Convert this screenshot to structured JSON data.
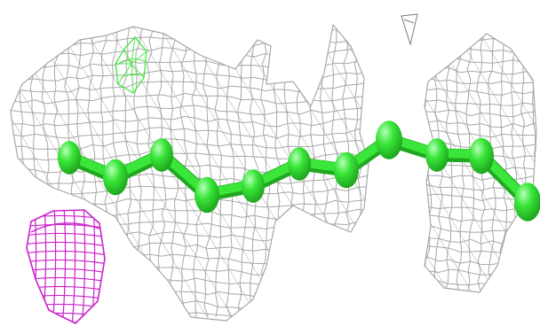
{
  "scene": {
    "background": "#ffffff",
    "colors": {
      "density_mesh": "#a8a8a8",
      "density_mesh_dark": "#7d7d7d",
      "ligand_chain": "#39e639",
      "ligand_highlight": "#b8ffb8",
      "ligand_shadow": "#1fa81f",
      "small_green_mesh": "#4ee84e",
      "magenta_mesh": "#cc22cc"
    },
    "objects": [
      "grey-electron-density-mesh",
      "green-ball-and-stick-chain",
      "small-green-mesh-blob",
      "magenta-mesh-blob"
    ]
  }
}
